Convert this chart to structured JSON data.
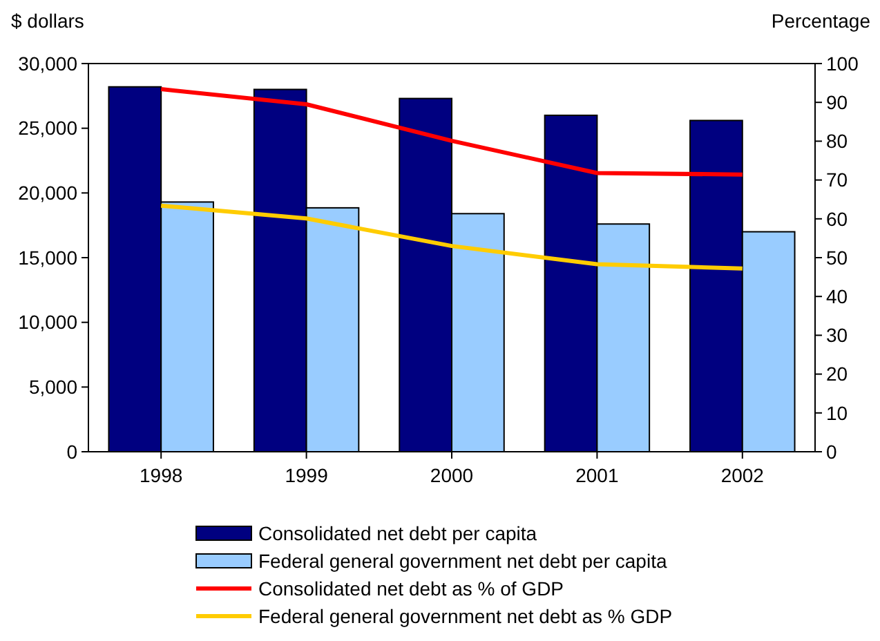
{
  "chart_data": {
    "type": "bar",
    "ylabel": "$ dollars",
    "y2label": "Percentage",
    "categories": [
      "1998",
      "1999",
      "2000",
      "2001",
      "2002"
    ],
    "series": [
      {
        "name": "Consolidated net debt per capita",
        "color": "#000080",
        "values": [
          28200,
          28000,
          27300,
          26000,
          25600
        ]
      },
      {
        "name": "Federal general government net debt per capita",
        "color": "#99ccff",
        "values": [
          19300,
          18850,
          18400,
          17600,
          17000
        ]
      },
      {
        "type": "line",
        "axis": "y2",
        "name": "Consolidated net debt as % of GDP",
        "color": "#ff0000",
        "values": [
          93.4,
          89.5,
          80.1,
          71.8,
          71.4
        ]
      },
      {
        "type": "line",
        "axis": "y2",
        "name": "Federal general government net debt as % GDP",
        "color": "#ffcc00",
        "values": [
          63.4,
          60.1,
          53.0,
          48.3,
          47.2
        ]
      }
    ],
    "ylim": [
      0,
      30000
    ],
    "yticks": [
      {
        "value": 0,
        "label": "0"
      },
      {
        "value": 5000,
        "label": "5,000"
      },
      {
        "value": 10000,
        "label": "10,000"
      },
      {
        "value": 15000,
        "label": "15,000"
      },
      {
        "value": 20000,
        "label": "20,000"
      },
      {
        "value": 25000,
        "label": "25,000"
      },
      {
        "value": 30000,
        "label": "30,000"
      }
    ],
    "y2lim": [
      0,
      100
    ],
    "y2ticks": [
      0,
      10,
      20,
      30,
      40,
      50,
      60,
      70,
      80,
      90,
      100
    ],
    "legend": "bottom",
    "grid": false
  }
}
